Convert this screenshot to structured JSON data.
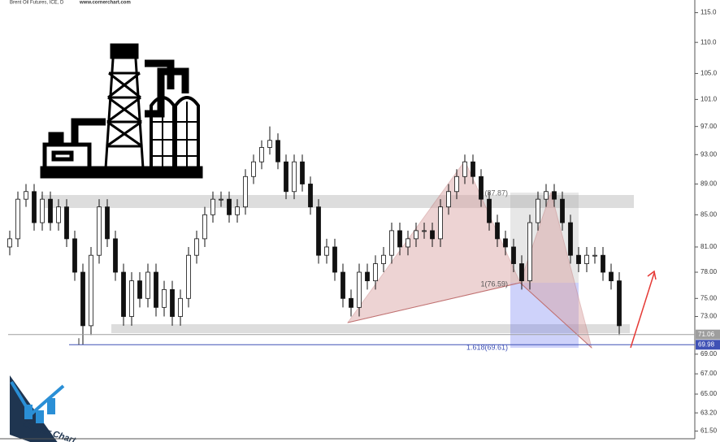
{
  "chart_data": {
    "type": "candlestick",
    "title": "Brent Oil Futures, ICE, D",
    "subtitle": "www.cornerchart.com",
    "color": "#111111",
    "log_scale": true,
    "ylim": [
      60.8,
      117.2
    ],
    "yticks": [
      {
        "value": 115,
        "label": "115.0"
      },
      {
        "value": 110,
        "label": "110.0"
      },
      {
        "value": 105,
        "label": "105.0"
      },
      {
        "value": 101,
        "label": "101.0"
      },
      {
        "value": 97,
        "label": "97.00"
      },
      {
        "value": 93,
        "label": "93.00"
      },
      {
        "value": 89,
        "label": "89.00"
      },
      {
        "value": 85,
        "label": "85.00"
      },
      {
        "value": 81,
        "label": "81.00"
      },
      {
        "value": 78,
        "label": "78.00"
      },
      {
        "value": 75,
        "label": "75.00"
      },
      {
        "value": 73,
        "label": "73.00"
      },
      {
        "value": 69,
        "label": "69.00"
      },
      {
        "value": 67,
        "label": "67.00"
      },
      {
        "value": 65,
        "label": "65.00"
      },
      {
        "value": 63.2,
        "label": "63.20"
      },
      {
        "value": 61.5,
        "label": "61.50"
      }
    ],
    "open": [
      81,
      82,
      87,
      88,
      84,
      87,
      84,
      86,
      82,
      78,
      72,
      80,
      86,
      82,
      78,
      73,
      77,
      75,
      78,
      74,
      76,
      73,
      75,
      80,
      82,
      85,
      87,
      87,
      85,
      86,
      90,
      92,
      94,
      95,
      92,
      88,
      92,
      89,
      86,
      80,
      81,
      78,
      75,
      74,
      78,
      77,
      79,
      80,
      83,
      81,
      82,
      83,
      83,
      82,
      86,
      88,
      90,
      92,
      90,
      87,
      84,
      82,
      81,
      79,
      77,
      84,
      87,
      88,
      87,
      84,
      80,
      79,
      80,
      80,
      78,
      77
    ],
    "high": [
      83,
      88,
      89,
      89,
      88,
      88,
      87,
      87,
      83,
      79,
      81,
      87,
      87,
      83,
      79,
      78,
      78,
      79,
      79,
      77,
      77,
      76,
      81,
      83,
      86,
      88,
      88,
      88,
      87,
      91,
      93,
      95,
      97,
      96,
      93,
      93,
      93,
      90,
      87,
      82,
      82,
      79,
      76,
      79,
      79,
      80,
      81,
      84,
      84,
      83,
      84,
      84,
      84,
      87,
      89,
      91,
      93,
      93,
      91,
      88,
      85,
      83,
      82,
      80,
      85,
      88,
      89,
      89,
      88,
      85,
      81,
      81,
      81,
      81,
      79,
      78
    ],
    "low": [
      80,
      81,
      86,
      83,
      83,
      83,
      83,
      81,
      77,
      70,
      71,
      79,
      81,
      77,
      72,
      72,
      74,
      74,
      73,
      73,
      72,
      72,
      74,
      79,
      81,
      84,
      86,
      84,
      84,
      85,
      89,
      91,
      93,
      91,
      87,
      87,
      88,
      85,
      79,
      79,
      77,
      74,
      73,
      73,
      76,
      76,
      78,
      79,
      80,
      80,
      81,
      82,
      81,
      81,
      85,
      87,
      89,
      89,
      86,
      83,
      81,
      80,
      78,
      76,
      76,
      83,
      86,
      86,
      83,
      79,
      78,
      78,
      79,
      77,
      76,
      71
    ],
    "close": [
      82,
      87,
      88,
      84,
      87,
      84,
      86,
      82,
      78,
      72,
      80,
      86,
      82,
      78,
      73,
      77,
      75,
      78,
      74,
      76,
      73,
      75,
      80,
      82,
      85,
      87,
      87,
      85,
      86,
      90,
      92,
      94,
      95,
      92,
      88,
      92,
      89,
      86,
      80,
      81,
      78,
      75,
      74,
      78,
      77,
      79,
      80,
      83,
      81,
      82,
      83,
      83,
      82,
      86,
      88,
      90,
      92,
      90,
      87,
      84,
      82,
      81,
      79,
      77,
      84,
      87,
      88,
      87,
      84,
      80,
      79,
      80,
      80,
      78,
      77,
      72
    ],
    "price_lines": [
      {
        "value": 71.06,
        "color": "#9e9e9e"
      },
      {
        "value": 69.98,
        "color": "#3f51b5"
      }
    ],
    "annotations": [
      "(87.87)",
      "1(76.59)",
      "1.618(69.61)"
    ],
    "logo_text": "Corner Chart"
  }
}
